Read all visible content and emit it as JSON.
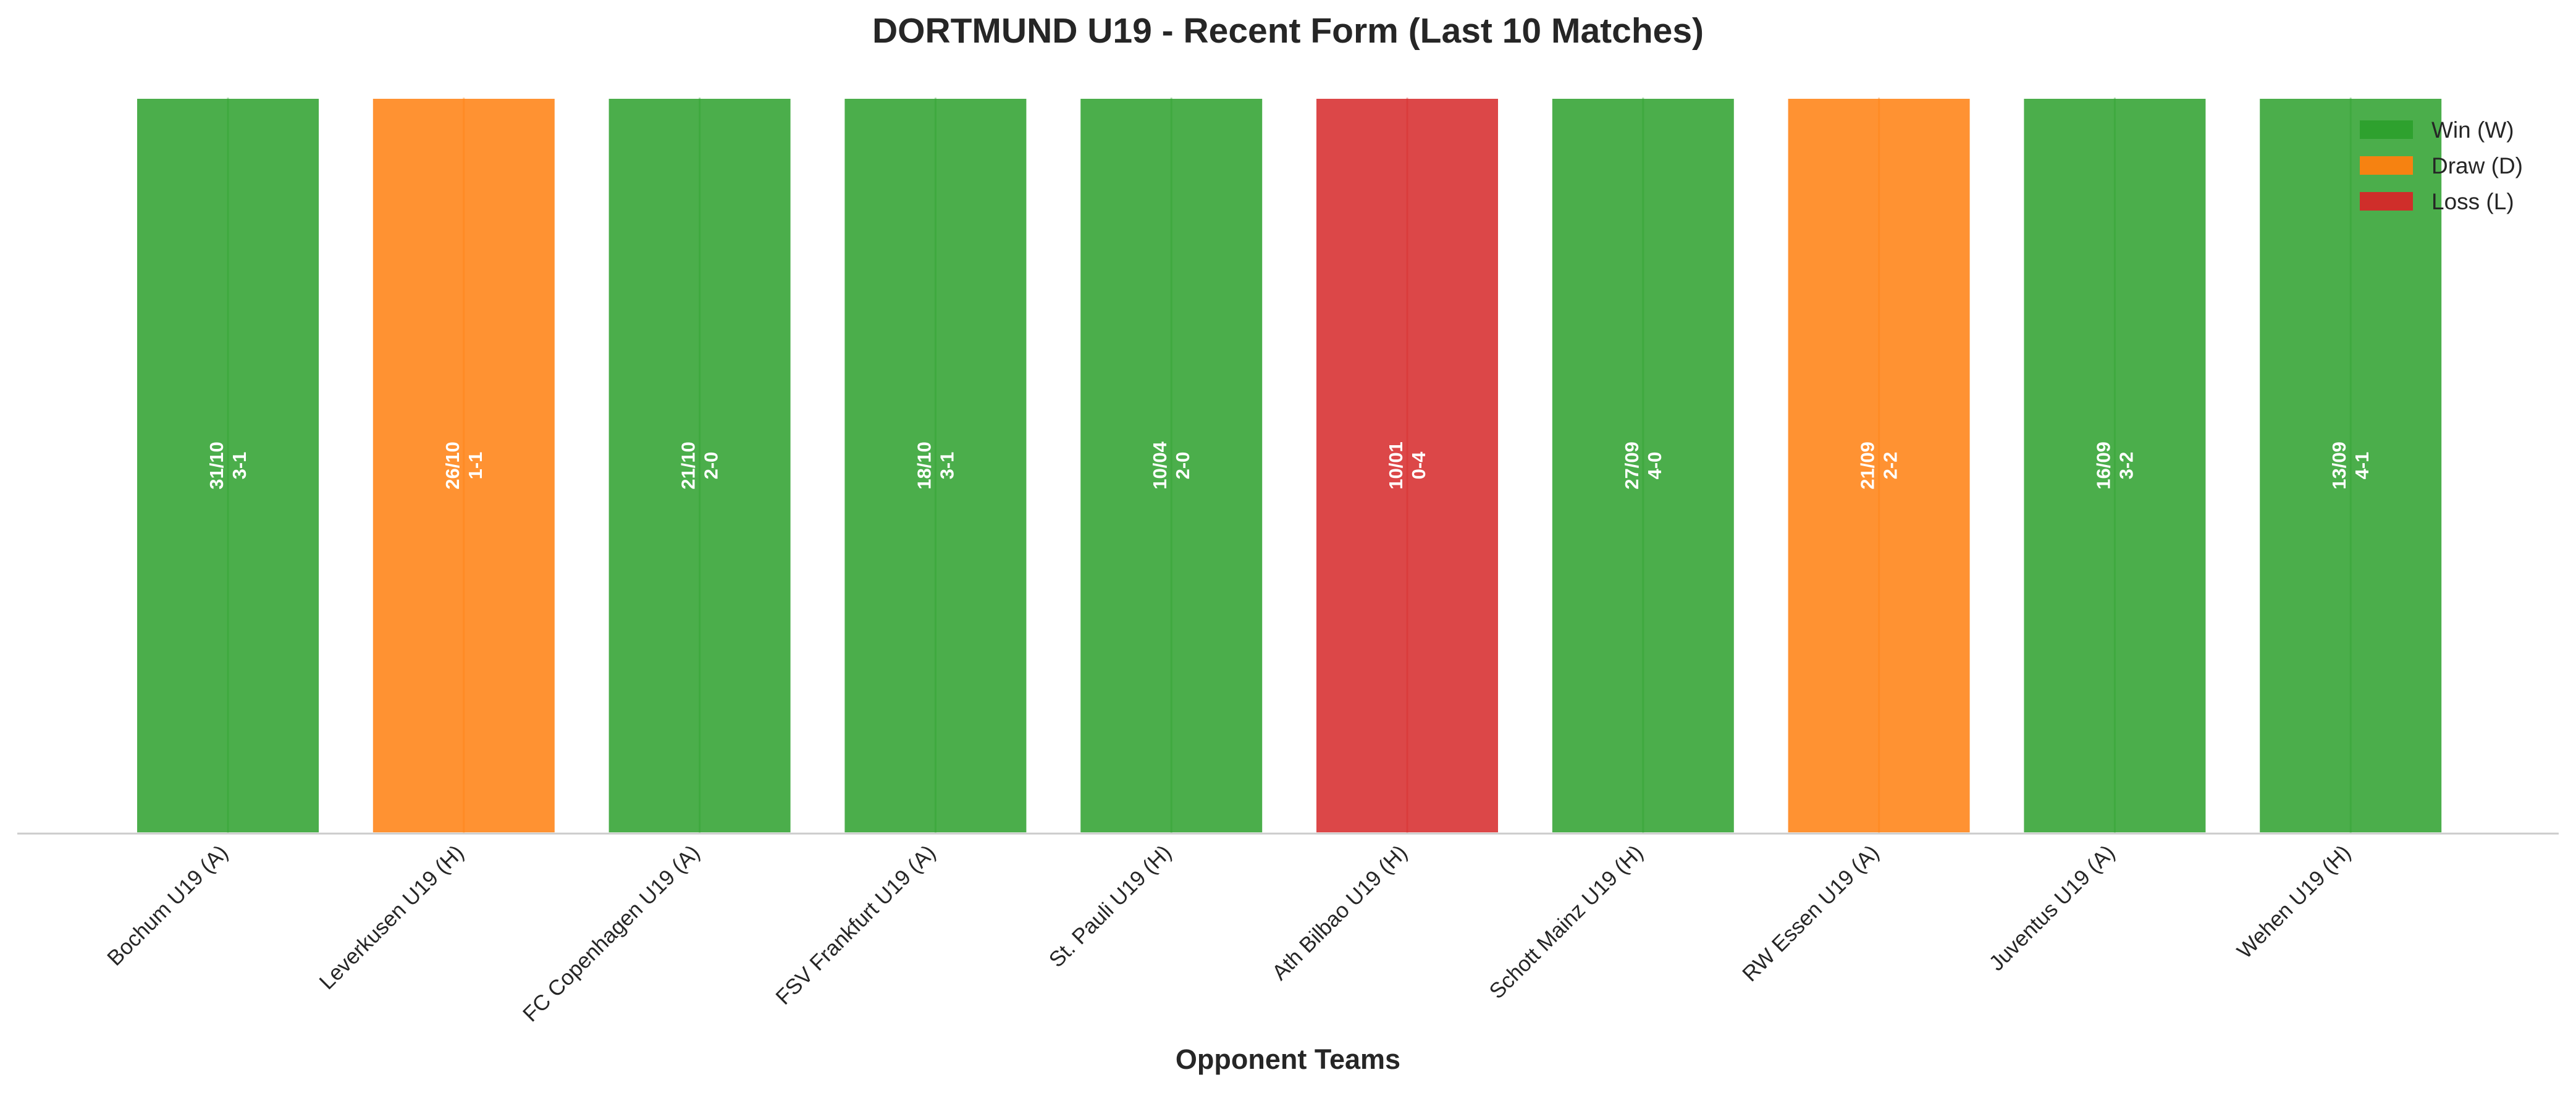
{
  "chart_data": {
    "type": "bar",
    "title": "DORTMUND U19 - Recent Form (Last 10 Matches)",
    "xlabel": "Opponent Teams",
    "ylabel": "",
    "categories": [
      "Bochum U19 (A)",
      "Leverkusen U19 (H)",
      "FC Copenhagen U19 (A)",
      "FSV Frankfurt U19 (A)",
      "St. Pauli U19 (H)",
      "Ath Bilbao U19 (H)",
      "Schott Mainz U19 (H)",
      "RW Essen U19 (A)",
      "Juventus U19 (A)",
      "Wehen U19 (H)"
    ],
    "values": [
      1,
      1,
      1,
      1,
      1,
      1,
      1,
      1,
      1,
      1
    ],
    "results": [
      "W",
      "D",
      "W",
      "W",
      "W",
      "L",
      "W",
      "D",
      "W",
      "W"
    ],
    "dates": [
      "31/10",
      "26/10",
      "21/10",
      "18/10",
      "10/04",
      "10/01",
      "27/09",
      "21/09",
      "16/09",
      "13/09"
    ],
    "scores": [
      "3-1",
      "1-1",
      "2-0",
      "3-1",
      "2-0",
      "0-4",
      "4-0",
      "2-2",
      "3-2",
      "4-1"
    ],
    "ylim": [
      0,
      1
    ],
    "grid": false,
    "legend": {
      "placement": "top-right",
      "entries": [
        {
          "key": "W",
          "label": "Win (W)",
          "color": "#2ca02c"
        },
        {
          "key": "D",
          "label": "Draw (D)",
          "color": "#ff7f0e"
        },
        {
          "key": "L",
          "label": "Loss (L)",
          "color": "#d62728"
        }
      ]
    }
  }
}
